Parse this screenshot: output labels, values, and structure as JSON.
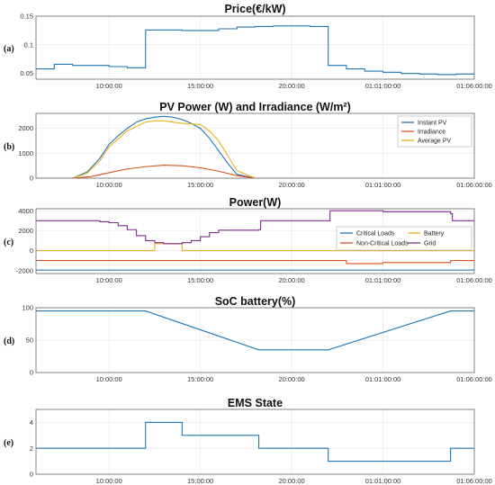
{
  "colors": {
    "blue": "#1f77b4",
    "orange": "#d95319",
    "yellow": "#edb120",
    "purple": "#7e2f8e"
  },
  "chart_data": [
    {
      "id": "price",
      "panel_label": "(a)",
      "title": "Price(€/kW)",
      "type": "line",
      "step": true,
      "xlim": [
        6,
        30
      ],
      "ylim": [
        0.04,
        0.15
      ],
      "yticks": [
        0.05,
        0.1,
        0.15
      ],
      "ytick_labels": [
        "0.05",
        "0.1",
        "0.15"
      ],
      "xticks": [
        10,
        15,
        20,
        25,
        30
      ],
      "xtick_labels": [
        "10:00:00",
        "15:00:00",
        "20:00:00",
        "01:01:00:00",
        "01:06:00:00"
      ],
      "grid": true,
      "series": [
        {
          "color": "blue",
          "x": [
            6,
            7,
            8,
            9,
            10,
            11,
            12,
            13,
            14,
            15,
            16,
            17,
            18,
            19,
            20,
            21,
            22,
            23,
            24,
            25,
            26,
            27,
            28,
            29,
            30
          ],
          "y": [
            0.058,
            0.066,
            0.064,
            0.064,
            0.062,
            0.06,
            0.126,
            0.126,
            0.125,
            0.125,
            0.128,
            0.131,
            0.132,
            0.133,
            0.133,
            0.132,
            0.064,
            0.058,
            0.054,
            0.052,
            0.05,
            0.049,
            0.048,
            0.049,
            0.049
          ]
        }
      ]
    },
    {
      "id": "pv",
      "panel_label": "(b)",
      "title": "PV Power (W) and Irradiance (W/m²)",
      "type": "line",
      "xlim": [
        6,
        30
      ],
      "ylim": [
        0,
        2600
      ],
      "yticks": [
        0,
        1000,
        2000
      ],
      "ytick_labels": [
        "0",
        "1000",
        "2000"
      ],
      "xticks": [
        10,
        15,
        20,
        25,
        30
      ],
      "xtick_labels": [
        "10:00:00",
        "15:00:00",
        "20:00:00",
        "01:01:00:00",
        "01:06:00:00"
      ],
      "grid": true,
      "legend": {
        "placement": "top-right",
        "entries": [
          "Instant PV",
          "Irradiance",
          "Average PV"
        ]
      },
      "series": [
        {
          "name": "Instant PV",
          "color": "blue",
          "x": [
            6,
            8,
            8.8,
            9.5,
            10,
            10.5,
            11,
            11.5,
            12,
            12.5,
            13,
            13.5,
            14,
            14.5,
            15,
            15.5,
            16,
            16.5,
            17,
            18,
            30
          ],
          "y": [
            0,
            0,
            250,
            800,
            1350,
            1700,
            2000,
            2250,
            2380,
            2450,
            2480,
            2450,
            2350,
            2200,
            2000,
            1600,
            1100,
            600,
            150,
            0,
            0
          ]
        },
        {
          "name": "Irradiance",
          "color": "orange",
          "x": [
            6,
            8,
            9,
            10,
            11,
            12,
            13,
            14,
            15,
            16,
            17,
            18,
            30
          ],
          "y": [
            0,
            0,
            60,
            220,
            370,
            460,
            520,
            500,
            420,
            280,
            100,
            0,
            0
          ]
        },
        {
          "name": "Average PV",
          "color": "yellow",
          "x": [
            6,
            8,
            8.8,
            9.5,
            10,
            11,
            12,
            12.5,
            13,
            13.5,
            14,
            15,
            15.5,
            16,
            16.5,
            17,
            18,
            30
          ],
          "y": [
            0,
            0,
            200,
            700,
            1250,
            1900,
            2250,
            2300,
            2300,
            2250,
            2200,
            2150,
            1900,
            1500,
            900,
            300,
            0,
            0
          ]
        }
      ]
    },
    {
      "id": "power",
      "panel_label": "(c)",
      "title": "Power(W)",
      "type": "line",
      "step": true,
      "xlim": [
        6,
        30
      ],
      "ylim": [
        -2300,
        4200
      ],
      "yticks": [
        -2000,
        0,
        2000,
        4000
      ],
      "ytick_labels": [
        "-2000",
        "0",
        "2000",
        "4000"
      ],
      "xticks": [
        10,
        15,
        20,
        25,
        30
      ],
      "xtick_labels": [
        "10:00:00",
        "15:00:00",
        "20:00:00",
        "01:01:00:00",
        "01:06:00:00"
      ],
      "grid": true,
      "legend": {
        "placement": "right",
        "entries": [
          "Critical Loads",
          "Battery",
          "Non-Critical Loads",
          "Grid"
        ]
      },
      "series": [
        {
          "name": "Critical Loads",
          "color": "blue",
          "x": [
            6,
            30
          ],
          "y": [
            -1950,
            -1950
          ]
        },
        {
          "name": "Battery",
          "color": "yellow",
          "x": [
            6,
            12,
            12.5,
            13,
            13.5,
            14,
            15,
            16,
            18.2,
            22,
            28.7,
            29,
            30
          ],
          "y": [
            0,
            0,
            700,
            700,
            700,
            0,
            0,
            0,
            0,
            0,
            0,
            0,
            0
          ]
        },
        {
          "name": "Non-Critical Loads",
          "color": "orange",
          "x": [
            6,
            12,
            14,
            22,
            23,
            25,
            28.7,
            30
          ],
          "y": [
            -1000,
            -1000,
            -1000,
            -1000,
            -1300,
            -1200,
            -1000,
            -1000
          ]
        },
        {
          "name": "Grid",
          "color": "purple",
          "x": [
            6,
            9,
            9.5,
            10,
            10.5,
            11,
            11.5,
            12,
            12.5,
            13,
            13.5,
            14,
            14.5,
            15,
            15.5,
            16,
            17,
            18.2,
            18.3,
            22,
            22.1,
            25,
            28.7,
            28.8,
            30
          ],
          "y": [
            3000,
            3000,
            2900,
            2800,
            2500,
            2100,
            1500,
            1000,
            800,
            700,
            700,
            800,
            1000,
            1400,
            1800,
            2050,
            2050,
            2100,
            3000,
            3000,
            4000,
            3900,
            3700,
            3000,
            3000
          ]
        }
      ]
    },
    {
      "id": "soc",
      "panel_label": "(d)",
      "title": "SoC battery(%)",
      "type": "line",
      "xlim": [
        6,
        30
      ],
      "ylim": [
        0,
        100
      ],
      "yticks": [
        0,
        50,
        100
      ],
      "ytick_labels": [
        "0",
        "50",
        "100"
      ],
      "xticks": [
        10,
        15,
        20,
        25,
        30
      ],
      "xtick_labels": [
        "10:00:00",
        "15:00:00",
        "20:00:00",
        "01:01:00:00",
        "01:06:00:00"
      ],
      "grid": true,
      "series": [
        {
          "color": "blue",
          "x": [
            6,
            12,
            18.2,
            22,
            28.7,
            30
          ],
          "y": [
            95,
            95,
            35,
            35,
            95,
            95
          ]
        }
      ]
    },
    {
      "id": "ems",
      "panel_label": "(e)",
      "title": "EMS State",
      "type": "line",
      "step": true,
      "xlim": [
        6,
        30
      ],
      "ylim": [
        0,
        5
      ],
      "yticks": [
        0,
        2,
        4
      ],
      "ytick_labels": [
        "0",
        "2",
        "4"
      ],
      "xticks": [
        10,
        15,
        20,
        25,
        30
      ],
      "xtick_labels": [
        "10:00:00",
        "15:00:00",
        "20:00:00",
        "01:01:00:00",
        "01:06:00:00"
      ],
      "grid": true,
      "series": [
        {
          "color": "blue",
          "x": [
            6,
            12,
            14,
            18.2,
            22,
            28.7,
            30
          ],
          "y": [
            2,
            4,
            3,
            2,
            1,
            2,
            2
          ]
        }
      ]
    }
  ]
}
